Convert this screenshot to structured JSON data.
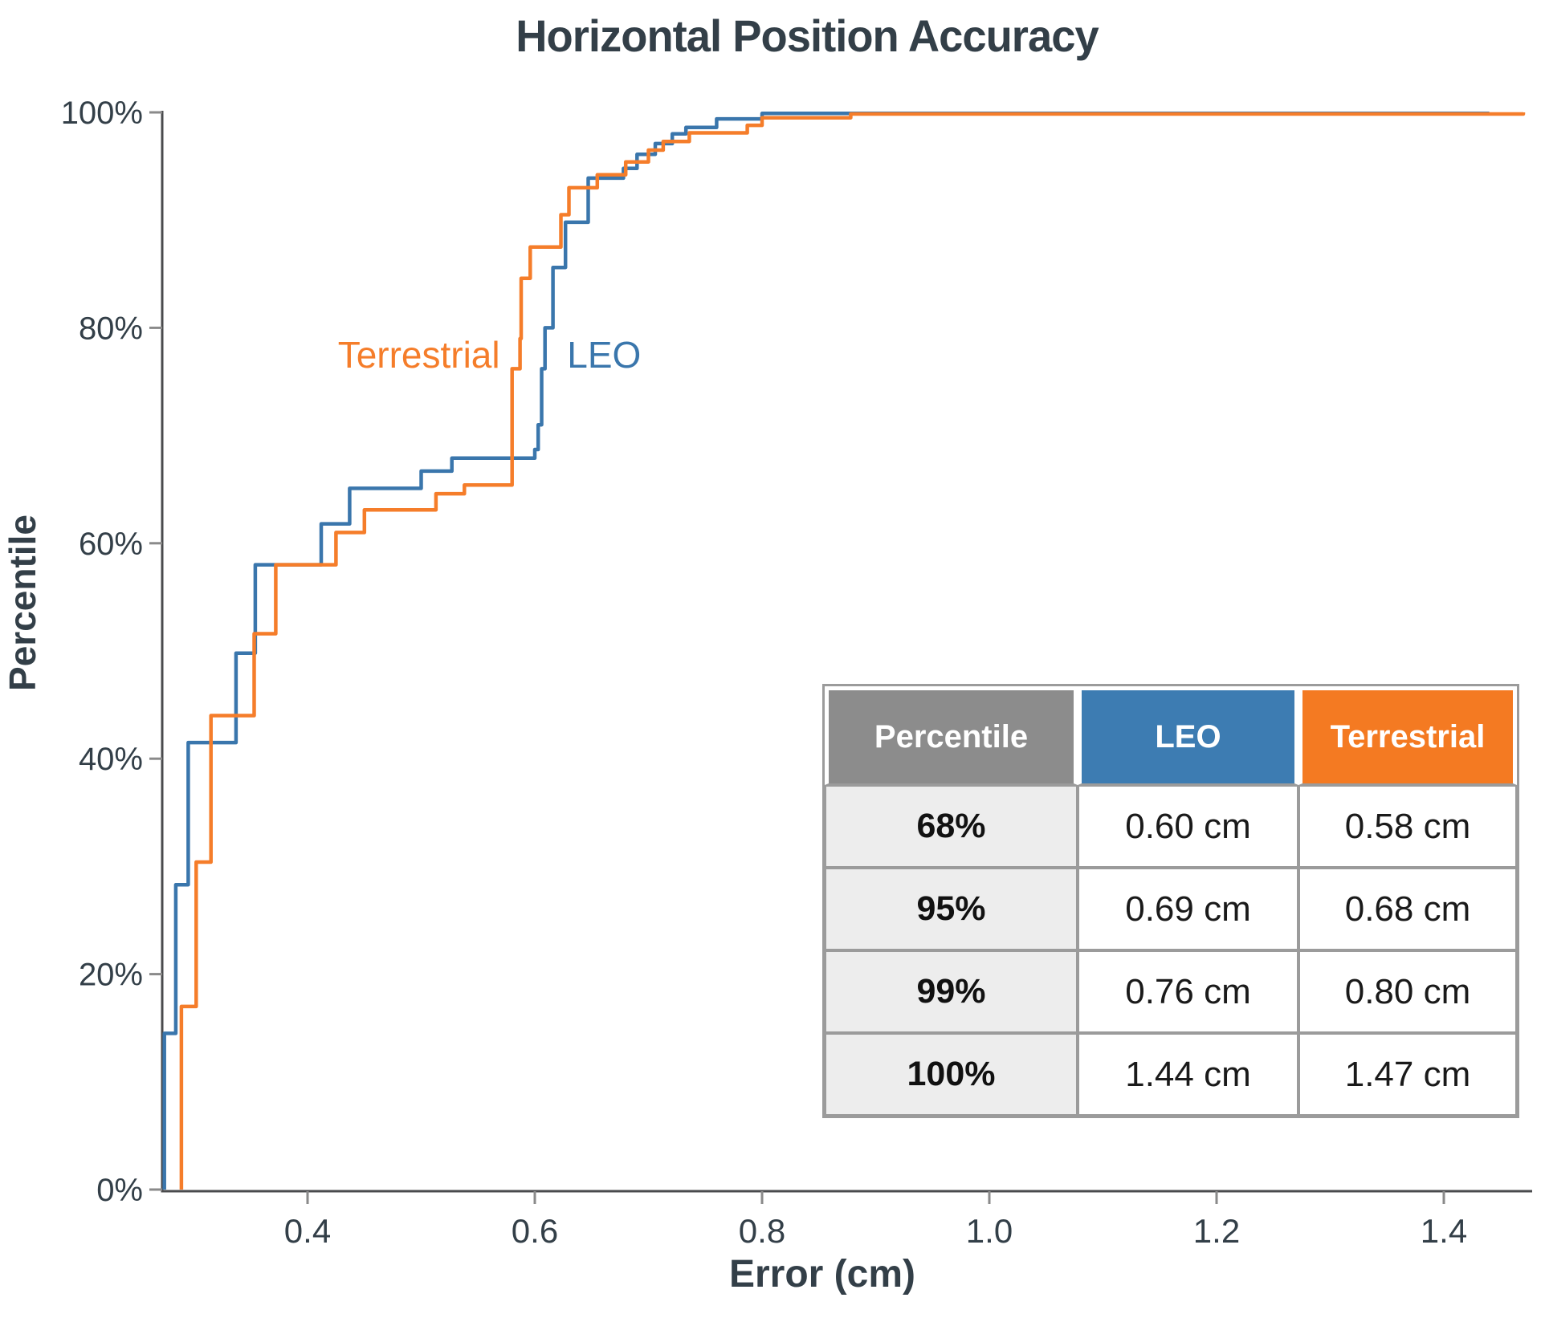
{
  "title": "Horizontal Position Accuracy",
  "colors": {
    "axis_line": "#4a4b4d",
    "tick_mark": "#8a8a8a",
    "text_dark": "#333F48",
    "leo": "#3A76AC",
    "terrestrial": "#F57D2A"
  },
  "chart_data": {
    "type": "line",
    "subtype": "step-cdf",
    "title": "Horizontal Position Accuracy",
    "xlabel": "Error (cm)",
    "ylabel": "Percentile",
    "xlim": [
      0.272,
      1.4765
    ],
    "ylim": [
      0,
      100
    ],
    "grid": false,
    "legend_position": "inline-labels",
    "x_ticks": [
      {
        "v": 0.4,
        "label": "0.4"
      },
      {
        "v": 0.6,
        "label": "0.6"
      },
      {
        "v": 0.8,
        "label": "0.8"
      },
      {
        "v": 1.0,
        "label": "1.0"
      },
      {
        "v": 1.2,
        "label": "1.2"
      },
      {
        "v": 1.4,
        "label": "1.4"
      }
    ],
    "y_ticks": [
      {
        "v": 0,
        "label": "0%"
      },
      {
        "v": 20,
        "label": "20%"
      },
      {
        "v": 40,
        "label": "40%"
      },
      {
        "v": 60,
        "label": "60%"
      },
      {
        "v": 80,
        "label": "80%"
      },
      {
        "v": 100,
        "label": "100%"
      }
    ],
    "series": [
      {
        "name": "LEO",
        "color": "#3A76AC",
        "points": [
          [
            0.274,
            0
          ],
          [
            0.274,
            14.5
          ],
          [
            0.284,
            14.5
          ],
          [
            0.284,
            28.3
          ],
          [
            0.295,
            28.3
          ],
          [
            0.295,
            41.5
          ],
          [
            0.337,
            41.5
          ],
          [
            0.337,
            49.8
          ],
          [
            0.354,
            49.8
          ],
          [
            0.354,
            58
          ],
          [
            0.412,
            58
          ],
          [
            0.412,
            61.8
          ],
          [
            0.437,
            61.8
          ],
          [
            0.437,
            65.1
          ],
          [
            0.5,
            65.1
          ],
          [
            0.5,
            66.7
          ],
          [
            0.527,
            66.7
          ],
          [
            0.527,
            67.9
          ],
          [
            0.6,
            67.9
          ],
          [
            0.6,
            68.7
          ],
          [
            0.603,
            68.7
          ],
          [
            0.603,
            71
          ],
          [
            0.606,
            71
          ],
          [
            0.606,
            76.2
          ],
          [
            0.609,
            76.2
          ],
          [
            0.609,
            80
          ],
          [
            0.616,
            80
          ],
          [
            0.616,
            85.6
          ],
          [
            0.627,
            85.6
          ],
          [
            0.627,
            89.8
          ],
          [
            0.647,
            89.8
          ],
          [
            0.647,
            93.9
          ],
          [
            0.678,
            93.9
          ],
          [
            0.678,
            94.8
          ],
          [
            0.69,
            94.8
          ],
          [
            0.69,
            96.1
          ],
          [
            0.706,
            96.1
          ],
          [
            0.706,
            97.1
          ],
          [
            0.721,
            97.1
          ],
          [
            0.721,
            98
          ],
          [
            0.733,
            98
          ],
          [
            0.733,
            98.6
          ],
          [
            0.76,
            98.6
          ],
          [
            0.76,
            99.4
          ],
          [
            0.8,
            99.4
          ],
          [
            0.8,
            99.9
          ],
          [
            1.44,
            99.9
          ],
          [
            1.44,
            100
          ]
        ]
      },
      {
        "name": "Terrestrial",
        "color": "#F57D2A",
        "points": [
          [
            0.289,
            0
          ],
          [
            0.289,
            17
          ],
          [
            0.302,
            17
          ],
          [
            0.302,
            30.4
          ],
          [
            0.315,
            30.4
          ],
          [
            0.315,
            44
          ],
          [
            0.353,
            44
          ],
          [
            0.353,
            51.6
          ],
          [
            0.372,
            51.6
          ],
          [
            0.372,
            58
          ],
          [
            0.425,
            58
          ],
          [
            0.425,
            61
          ],
          [
            0.45,
            61
          ],
          [
            0.45,
            63.1
          ],
          [
            0.513,
            63.1
          ],
          [
            0.513,
            64.6
          ],
          [
            0.538,
            64.6
          ],
          [
            0.538,
            65.4
          ],
          [
            0.58,
            65.4
          ],
          [
            0.58,
            76.2
          ],
          [
            0.587,
            76.2
          ],
          [
            0.587,
            79
          ],
          [
            0.588,
            79
          ],
          [
            0.588,
            84.6
          ],
          [
            0.596,
            84.6
          ],
          [
            0.596,
            87.5
          ],
          [
            0.623,
            87.5
          ],
          [
            0.623,
            90.5
          ],
          [
            0.63,
            90.5
          ],
          [
            0.63,
            93
          ],
          [
            0.655,
            93
          ],
          [
            0.655,
            94.2
          ],
          [
            0.68,
            94.2
          ],
          [
            0.68,
            95.4
          ],
          [
            0.7,
            95.4
          ],
          [
            0.7,
            96.5
          ],
          [
            0.713,
            96.5
          ],
          [
            0.713,
            97.3
          ],
          [
            0.736,
            97.3
          ],
          [
            0.736,
            98.1
          ],
          [
            0.787,
            98.1
          ],
          [
            0.787,
            98.8
          ],
          [
            0.8,
            98.8
          ],
          [
            0.8,
            99.5
          ],
          [
            0.878,
            99.5
          ],
          [
            0.878,
            99.85
          ],
          [
            1.47,
            99.85
          ],
          [
            1.47,
            100
          ]
        ]
      }
    ],
    "annotations": [
      {
        "text": "Terrestrial",
        "x": 0.498,
        "y": 77.5,
        "color": "#F57D2A"
      },
      {
        "text": "LEO",
        "x": 0.661,
        "y": 77.5,
        "color": "#3A76AC"
      }
    ]
  },
  "table": {
    "headers": [
      {
        "label": "Percentile",
        "bg": "#8C8C8C"
      },
      {
        "label": "LEO",
        "bg": "#3D7CB2"
      },
      {
        "label": "Terrestrial",
        "bg": "#F47A22"
      }
    ],
    "rows": [
      [
        "68%",
        "0.60 cm",
        "0.58 cm"
      ],
      [
        "95%",
        "0.69 cm",
        "0.68 cm"
      ],
      [
        "99%",
        "0.76 cm",
        "0.80 cm"
      ],
      [
        "100%",
        "1.44 cm",
        "1.47 cm"
      ]
    ]
  }
}
